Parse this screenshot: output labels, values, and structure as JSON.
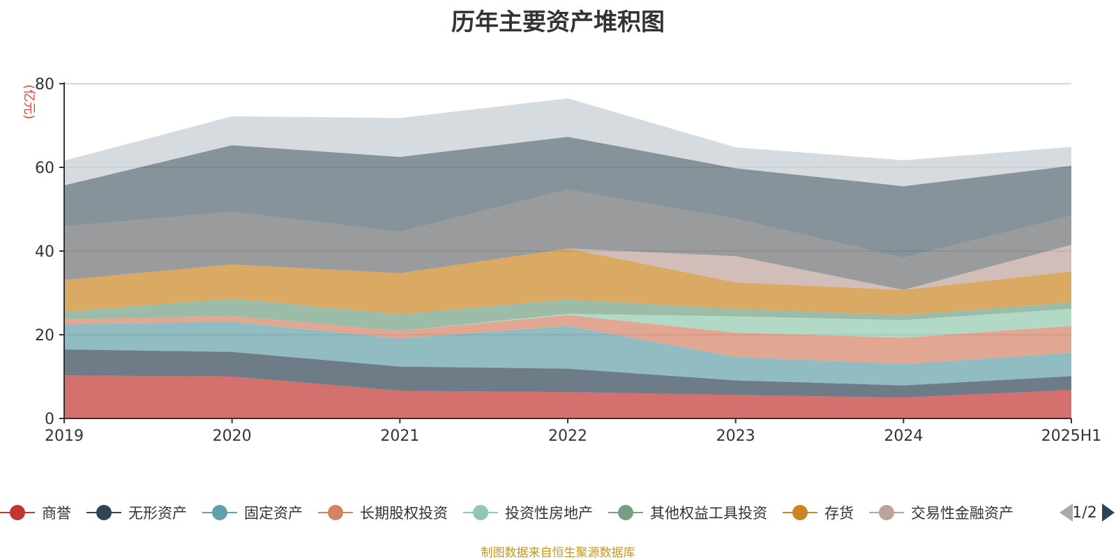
{
  "chart_data": {
    "type": "area",
    "title": "历年主要资产堆积图",
    "ylabel": "(亿元)",
    "xlabel": "",
    "categories": [
      "2019",
      "2020",
      "2021",
      "2022",
      "2023",
      "2024",
      "2025H1"
    ],
    "ylim": [
      0,
      80
    ],
    "yticks": [
      "0",
      "20",
      "40",
      "60",
      "80"
    ],
    "grid": true,
    "legend_position": "bottom",
    "legend_page": "1/2",
    "stacked": true,
    "series": [
      {
        "name": "商誉",
        "color": "#c23531",
        "values": [
          10.3,
          10.0,
          6.6,
          6.3,
          5.6,
          5.0,
          6.8
        ]
      },
      {
        "name": "无形资产",
        "color": "#2f4554",
        "values": [
          6.2,
          5.9,
          5.8,
          5.6,
          3.5,
          2.9,
          3.3
        ]
      },
      {
        "name": "固定资产",
        "color": "#61a0a8",
        "values": [
          6.0,
          7.2,
          6.7,
          10.2,
          5.6,
          5.1,
          5.6
        ]
      },
      {
        "name": "长期股权投资",
        "color": "#d48265",
        "values": [
          1.2,
          1.4,
          1.8,
          2.6,
          5.8,
          6.3,
          6.4
        ]
      },
      {
        "name": "投资性房地产",
        "color": "#91c7ae",
        "values": [
          0,
          0,
          0,
          0.3,
          3.9,
          4.2,
          4.1
        ]
      },
      {
        "name": "其他权益工具投资",
        "color": "#749f83",
        "values": [
          1.8,
          4.1,
          4.0,
          3.4,
          1.8,
          1.2,
          1.5
        ]
      },
      {
        "name": "存货",
        "color": "#ca8622",
        "values": [
          7.6,
          8.2,
          9.8,
          12.2,
          6.3,
          6.0,
          7.4
        ]
      },
      {
        "name": "交易性金融资产",
        "color": "#bda29a",
        "values": [
          0,
          0,
          0,
          0,
          6.3,
          0,
          6.4
        ]
      },
      {
        "name": "",
        "color": "#6e7074",
        "values": [
          12.8,
          12.6,
          9.9,
          14.1,
          8.9,
          7.7,
          6.9
        ]
      },
      {
        "name": "",
        "color": "#546570",
        "values": [
          9.8,
          15.9,
          17.9,
          12.6,
          12.1,
          17.1,
          12.0
        ]
      },
      {
        "name": "",
        "color": "#c4ccd3",
        "values": [
          5.9,
          6.9,
          9.3,
          9.2,
          5.0,
          6.2,
          4.5
        ]
      }
    ]
  },
  "source_text": "制图数据来自恒生聚源数据库"
}
